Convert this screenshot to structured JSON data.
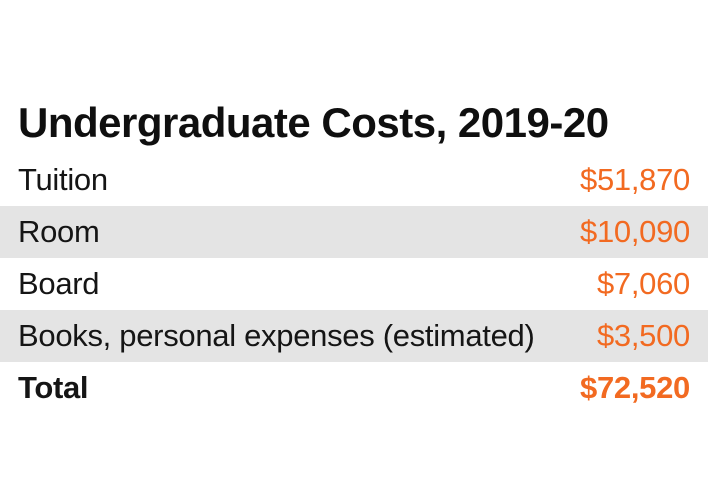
{
  "title": "Undergraduate Costs, 2019-20",
  "rows": [
    {
      "label": "Tuition",
      "value": "$51,870"
    },
    {
      "label": "Room",
      "value": "$10,090"
    },
    {
      "label": "Board",
      "value": "$7,060"
    },
    {
      "label": "Books, personal expenses (estimated)",
      "value": "$3,500"
    }
  ],
  "total": {
    "label": "Total",
    "value": "$72,520"
  },
  "colors": {
    "accent": "#f26a21",
    "shade": "#e4e4e4",
    "text": "#151515"
  }
}
